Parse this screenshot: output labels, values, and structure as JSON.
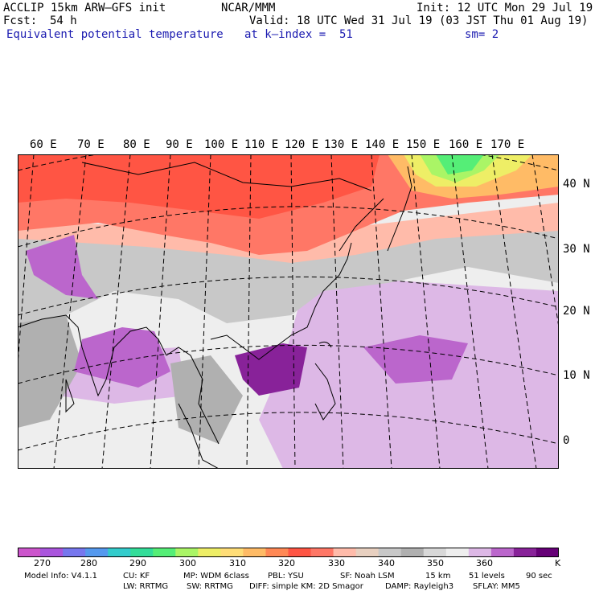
{
  "header": {
    "model_title": "ACCLIP 15km ARW–GFS init",
    "org": "NCAR/MMM",
    "init": "Init: 12 UTC Mon 29 Jul 19",
    "fcst_label": "Fcst:",
    "fcst_value": "54 h",
    "valid": "Valid: 18 UTC Wed 31 Jul 19 (03 JST Thu 01 Aug 19)",
    "field_name": "Equivalent potential temperature",
    "level": "at k–index =  51",
    "smoothing": "sm= 2"
  },
  "map": {
    "lon_labels": [
      "60 E",
      "70 E",
      "80 E",
      "90 E",
      "100 E",
      "110 E",
      "120 E",
      "130 E",
      "140 E",
      "150 E",
      "160 E",
      "170 E"
    ],
    "lat_labels": [
      "40 N",
      "30 N",
      "20 N",
      "10 N",
      "0"
    ]
  },
  "colorbar": {
    "unit": "K",
    "tick_labels": [
      "270",
      "280",
      "290",
      "300",
      "310",
      "320",
      "330",
      "340",
      "350",
      "360"
    ],
    "colors": [
      "#cc55cc",
      "#aa55dd",
      "#7777ee",
      "#5599ee",
      "#33cccc",
      "#33dd99",
      "#55ee77",
      "#aaf566",
      "#eeee66",
      "#ffdd77",
      "#ffbb66",
      "#ff8855",
      "#ff5544",
      "#ff7766",
      "#ffbbaa",
      "#e8d0c0",
      "#c8c8c8",
      "#b0b0b0",
      "#d8d8d8",
      "#eeeeee",
      "#ddb8e6",
      "#bb66cc",
      "#882299",
      "#660077"
    ]
  },
  "footer": {
    "line1": [
      "Model Info: V4.1.1",
      "CU: KF",
      "MP: WDM 6class",
      "PBL: YSU",
      "SF: Noah LSM",
      "15 km",
      "51 levels",
      "90 sec"
    ],
    "line2": [
      "LW: RRTMG",
      "SW: RRTMG",
      "DIFF: simple KM: 2D Smagor",
      "DAMP: Rayleigh3",
      "SFLAY: MM5"
    ]
  }
}
